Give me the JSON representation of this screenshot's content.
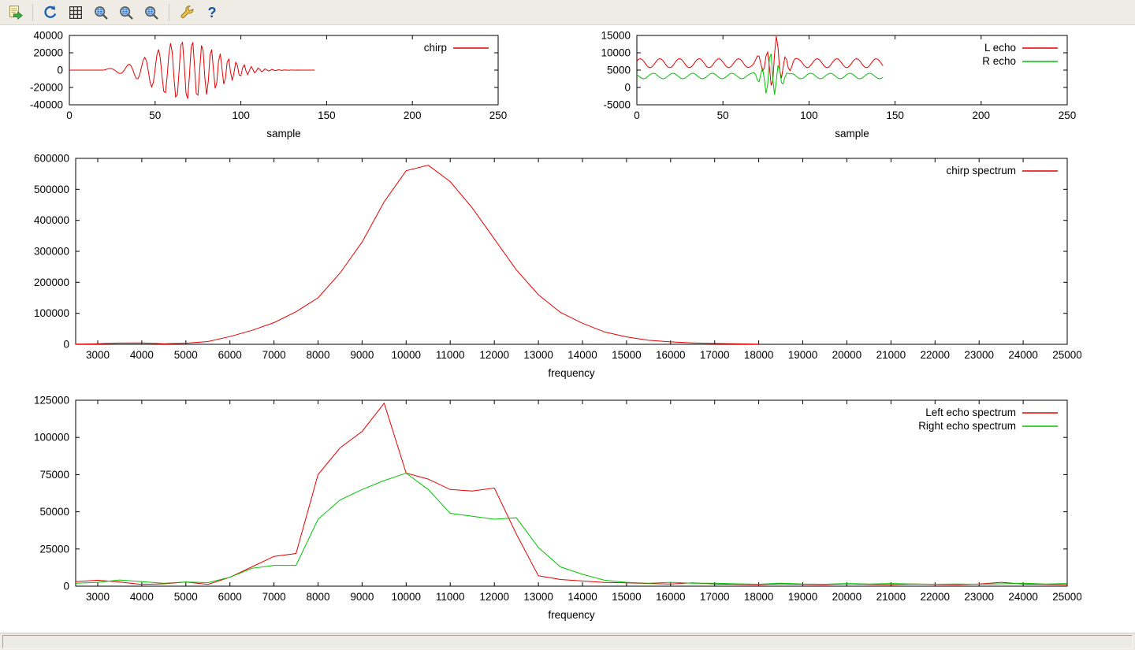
{
  "toolbar": {
    "icons": [
      "copy-to-clipboard",
      "replot",
      "toggle-grid",
      "zoom-previous",
      "zoom-next",
      "autoscale",
      "configure",
      "help"
    ],
    "help_glyph": "?"
  },
  "status": {
    "text": ""
  },
  "colors": {
    "series_red": "#e60000",
    "series_green": "#00c400",
    "chrome_background": "#efece6",
    "plot_background": "#ffffff",
    "axis": "#000000"
  },
  "chart_data": [
    {
      "type": "line",
      "title": "",
      "xlabel": "sample",
      "ylabel": "",
      "legend_position": "top-right",
      "xlim": [
        0,
        250
      ],
      "ylim": [
        -40000,
        40000
      ],
      "xticks": [
        0,
        50,
        100,
        150,
        200,
        250
      ],
      "yticks": [
        -40000,
        -20000,
        0,
        20000,
        40000
      ],
      "series": [
        {
          "name": "chirp",
          "color": "#e60000",
          "synth": {
            "kind": "chirp",
            "n": 144,
            "start": 20,
            "center": 68,
            "width": 26,
            "amp": 35000,
            "w0": 0.45,
            "k": 0.006
          }
        }
      ]
    },
    {
      "type": "line",
      "title": "",
      "xlabel": "sample",
      "ylabel": "",
      "legend_position": "top-right",
      "xlim": [
        0,
        250
      ],
      "ylim": [
        -5000,
        15000
      ],
      "xticks": [
        0,
        50,
        100,
        150,
        200,
        250
      ],
      "yticks": [
        -5000,
        0,
        5000,
        10000,
        15000
      ],
      "series": [
        {
          "name": "L echo",
          "color": "#e60000",
          "synth": {
            "kind": "carrier_burst",
            "n": 144,
            "base": 7000,
            "a1": 1300,
            "w1": 0.55,
            "p1": 0.5,
            "bamp": 6800,
            "bc": 80,
            "bw": 7,
            "bwv": 1.15,
            "bp": 0.3
          }
        },
        {
          "name": "R echo",
          "color": "#00c400",
          "synth": {
            "kind": "carrier_burst",
            "n": 144,
            "base": 3300,
            "a1": 800,
            "w1": 0.55,
            "p1": 2.6,
            "bamp": 6500,
            "bc": 78,
            "bw": 6,
            "bwv": 1.3,
            "bp": 2.1
          }
        }
      ]
    },
    {
      "type": "line",
      "title": "",
      "xlabel": "frequency",
      "ylabel": "",
      "legend_position": "top-right",
      "xlim": [
        2500,
        25000
      ],
      "ylim": [
        0,
        600000
      ],
      "xticks": [
        3000,
        4000,
        5000,
        6000,
        7000,
        8000,
        9000,
        10000,
        11000,
        12000,
        13000,
        14000,
        15000,
        16000,
        17000,
        18000,
        19000,
        20000,
        21000,
        22000,
        23000,
        24000,
        25000
      ],
      "yticks": [
        0,
        100000,
        200000,
        300000,
        400000,
        500000,
        600000
      ],
      "x": [
        2500,
        3000,
        3500,
        4000,
        4500,
        5000,
        5500,
        6000,
        6500,
        7000,
        7500,
        8000,
        8500,
        9000,
        9500,
        10000,
        10500,
        11000,
        11500,
        12000,
        12500,
        13000,
        13500,
        14000,
        14500,
        15000,
        15500,
        16000,
        16500,
        17000,
        17500,
        18000
      ],
      "series": [
        {
          "name": "chirp spectrum",
          "color": "#e60000",
          "values": [
            500,
            1500,
            4000,
            4500,
            1500,
            3500,
            9000,
            25000,
            45000,
            70000,
            105000,
            150000,
            230000,
            330000,
            460000,
            560000,
            578000,
            525000,
            440000,
            340000,
            240000,
            160000,
            103000,
            68000,
            40000,
            24000,
            13000,
            8000,
            4500,
            2500,
            1500,
            800
          ]
        }
      ]
    },
    {
      "type": "line",
      "title": "",
      "xlabel": "frequency",
      "ylabel": "",
      "legend_position": "top-right",
      "xlim": [
        2500,
        25000
      ],
      "ylim": [
        0,
        125000
      ],
      "xticks": [
        3000,
        4000,
        5000,
        6000,
        7000,
        8000,
        9000,
        10000,
        11000,
        12000,
        13000,
        14000,
        15000,
        16000,
        17000,
        18000,
        19000,
        20000,
        21000,
        22000,
        23000,
        24000,
        25000
      ],
      "yticks": [
        0,
        25000,
        50000,
        75000,
        100000,
        125000
      ],
      "x": [
        2500,
        3000,
        3500,
        4000,
        4500,
        5000,
        5500,
        6000,
        6500,
        7000,
        7500,
        8000,
        8500,
        9000,
        9500,
        10000,
        10500,
        11000,
        11500,
        12000,
        12500,
        13000,
        13500,
        14000,
        14500,
        15000,
        15500,
        16000,
        16500,
        17000,
        17500,
        18000,
        18500,
        19000,
        19500,
        20000,
        20500,
        21000,
        21500,
        22000,
        22500,
        23000,
        23500,
        24000,
        24500,
        25000
      ],
      "series": [
        {
          "name": "Left echo spectrum",
          "color": "#e60000",
          "values": [
            3000,
            4000,
            2800,
            1200,
            1600,
            2800,
            1200,
            6000,
            13000,
            20000,
            22000,
            75000,
            93000,
            104000,
            123000,
            76000,
            72000,
            65000,
            64000,
            66000,
            35000,
            7000,
            4500,
            3500,
            2500,
            2200,
            1800,
            1500,
            2200,
            1500,
            1200,
            1000,
            1600,
            1200,
            1000,
            1600,
            1200,
            1000,
            1500,
            1200,
            1000,
            1500,
            2600,
            1500,
            1200,
            1000
          ]
        },
        {
          "name": "Right echo spectrum",
          "color": "#00c400",
          "values": [
            2000,
            2600,
            4200,
            3000,
            2000,
            2800,
            2400,
            6000,
            12000,
            14000,
            14000,
            45000,
            58000,
            65000,
            71000,
            76000,
            65000,
            49000,
            47000,
            45000,
            46000,
            26000,
            13000,
            8000,
            4000,
            2600,
            2000,
            2600,
            2000,
            2000,
            1600,
            1300,
            2000,
            1500,
            1300,
            1800,
            1500,
            1800,
            1500,
            1300,
            1500,
            1300,
            1600,
            2000,
            1500,
            1800
          ]
        }
      ]
    }
  ]
}
